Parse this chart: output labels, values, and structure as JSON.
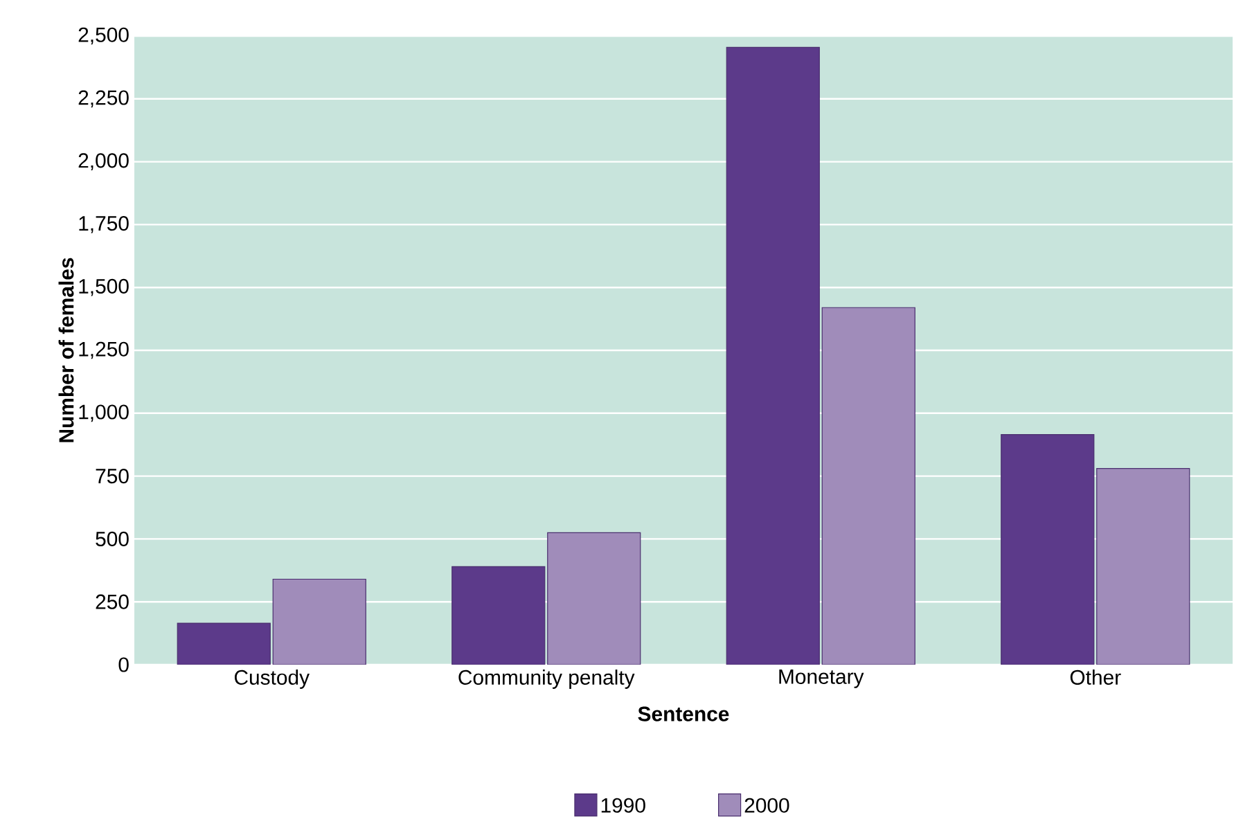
{
  "chart_data": {
    "type": "bar",
    "xlabel": "Sentence",
    "ylabel": "Number of females",
    "categories": [
      "Custody",
      "Community penalty",
      "Monetary",
      "Other"
    ],
    "series": [
      {
        "name": "1990",
        "color": "#5c3a8a",
        "values": [
          165,
          390,
          2455,
          915
        ]
      },
      {
        "name": "2000",
        "color": "#a08cba",
        "values": [
          340,
          525,
          1420,
          780
        ]
      }
    ],
    "ylim": [
      0,
      2500
    ],
    "yticks": [
      0,
      250,
      500,
      750,
      {
        "value": 1000,
        "label": "1,000"
      },
      {
        "value": 1250,
        "label": "1,250"
      },
      {
        "value": 1500,
        "label": "1,500"
      },
      {
        "value": 1750,
        "label": "1,750"
      },
      {
        "value": 2000,
        "label": "2,000"
      },
      {
        "value": 2250,
        "label": "2,250"
      },
      {
        "value": 2500,
        "label": "2,500"
      }
    ],
    "grid": "y",
    "legend": "bottom"
  }
}
